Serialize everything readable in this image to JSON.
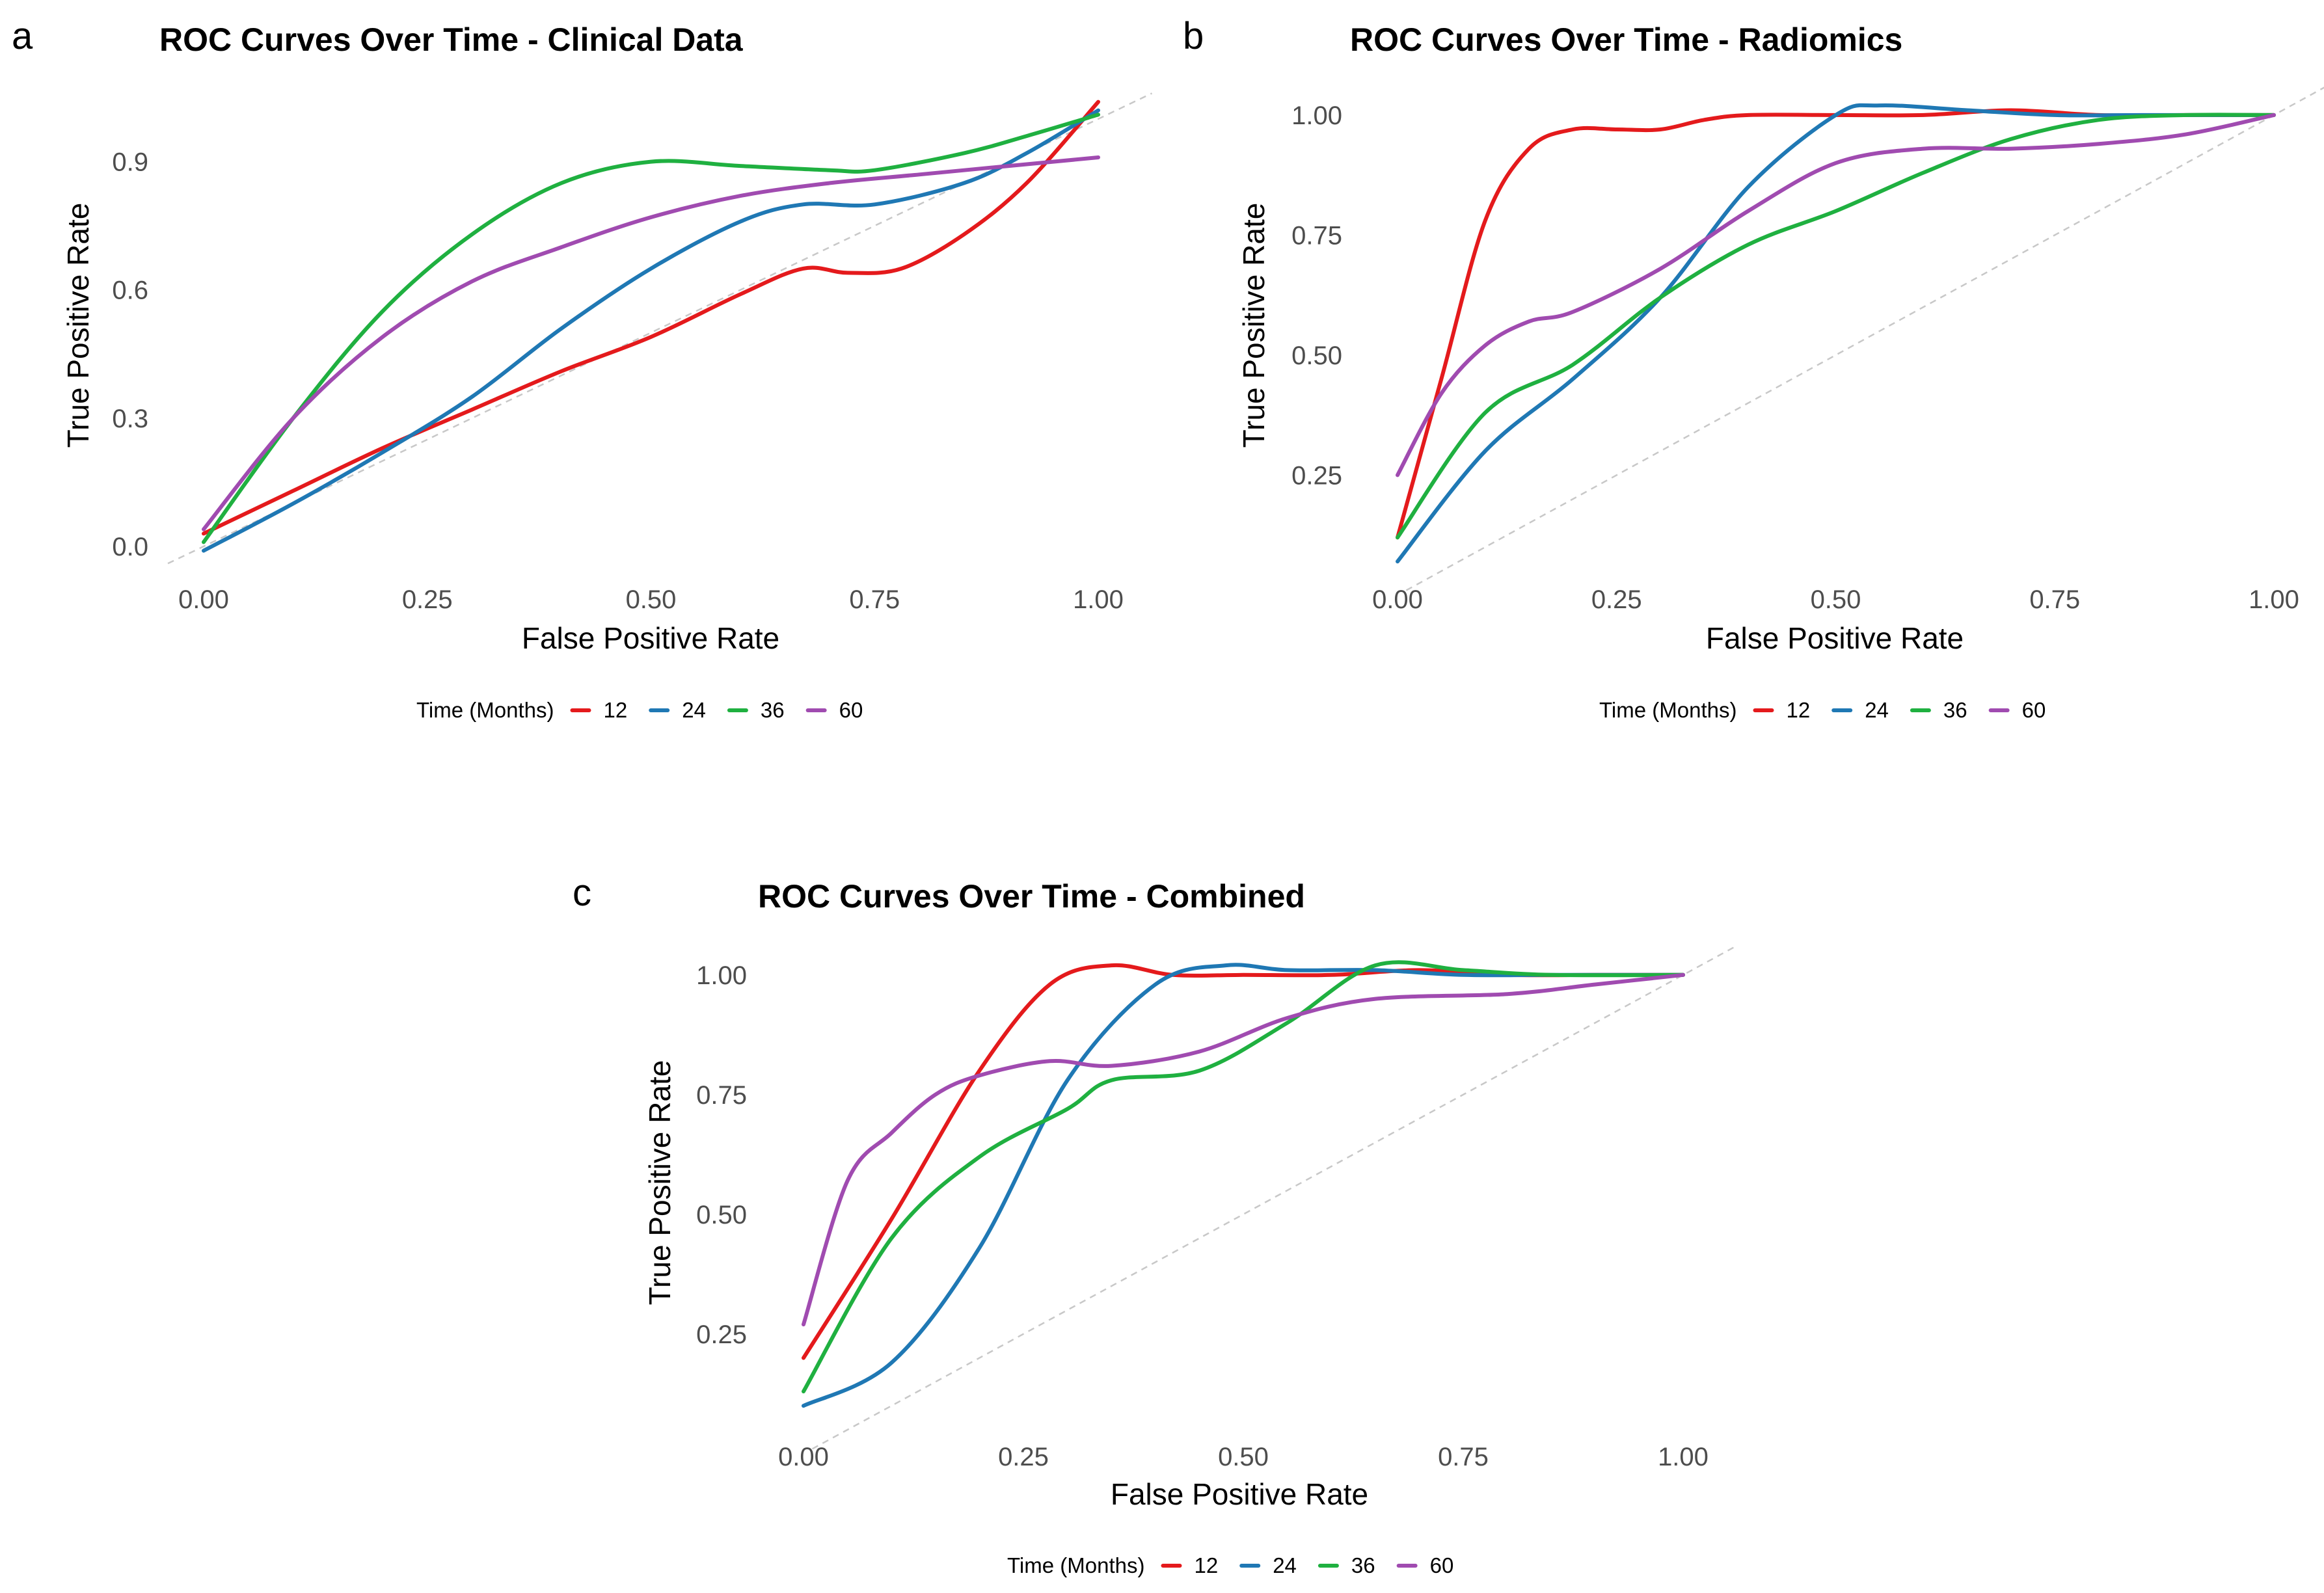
{
  "chart_data": [
    {
      "type": "line",
      "panel": "a",
      "title": "ROC Curves Over Time - Clinical Data",
      "xlabel": "False Positive Rate",
      "ylabel": "True Positive Rate",
      "xlim": [
        0,
        1
      ],
      "ylim": [
        0,
        1.05
      ],
      "xticks": [
        0,
        0.25,
        0.5,
        0.75,
        1
      ],
      "xtick_labels": [
        "0.00",
        "0.25",
        "0.50",
        "0.75",
        "1.00"
      ],
      "yticks": [
        0,
        0.3,
        0.6,
        0.9
      ],
      "ytick_labels": [
        "0.0",
        "0.3",
        "0.6",
        "0.9"
      ],
      "legend_title": "Time (Months)",
      "legend_position": "bottom",
      "series": [
        {
          "name": "12",
          "color": "#e41a1c",
          "x": [
            0,
            0.1,
            0.2,
            0.3,
            0.4,
            0.5,
            0.6,
            0.67,
            0.72,
            0.78,
            0.85,
            0.92,
            1.0
          ],
          "y": [
            0.03,
            0.13,
            0.23,
            0.32,
            0.41,
            0.49,
            0.59,
            0.65,
            0.64,
            0.65,
            0.73,
            0.85,
            1.04
          ]
        },
        {
          "name": "24",
          "color": "#1f78b4",
          "x": [
            0,
            0.1,
            0.2,
            0.3,
            0.4,
            0.5,
            0.6,
            0.67,
            0.75,
            0.85,
            0.92,
            1.0
          ],
          "y": [
            -0.01,
            0.1,
            0.22,
            0.35,
            0.51,
            0.65,
            0.76,
            0.8,
            0.8,
            0.85,
            0.92,
            1.02
          ]
        },
        {
          "name": "36",
          "color": "#1fb040",
          "x": [
            0,
            0.1,
            0.2,
            0.3,
            0.4,
            0.5,
            0.6,
            0.7,
            0.75,
            0.85,
            0.92,
            1.0
          ],
          "y": [
            0.01,
            0.3,
            0.55,
            0.73,
            0.85,
            0.9,
            0.89,
            0.88,
            0.88,
            0.92,
            0.96,
            1.01
          ]
        },
        {
          "name": "60",
          "color": "#a04bb0",
          "x": [
            0,
            0.1,
            0.2,
            0.3,
            0.4,
            0.5,
            0.6,
            0.7,
            0.8,
            0.9,
            1.0
          ],
          "y": [
            0.04,
            0.3,
            0.49,
            0.62,
            0.7,
            0.77,
            0.82,
            0.85,
            0.87,
            0.89,
            0.91
          ]
        }
      ]
    },
    {
      "type": "line",
      "panel": "b",
      "title": "ROC Curves Over Time - Radiomics",
      "xlabel": "False Positive Rate",
      "ylabel": "True Positive Rate",
      "xlim": [
        0,
        1
      ],
      "ylim": [
        0.05,
        1.05
      ],
      "xticks": [
        0,
        0.25,
        0.5,
        0.75,
        1
      ],
      "xtick_labels": [
        "0.00",
        "0.25",
        "0.50",
        "0.75",
        "1.00"
      ],
      "yticks": [
        0.25,
        0.5,
        0.75,
        1.0
      ],
      "ytick_labels": [
        "0.25",
        "0.50",
        "0.75",
        "1.00"
      ],
      "legend_title": "Time (Months)",
      "legend_position": "bottom",
      "series": [
        {
          "name": "12",
          "color": "#e41a1c",
          "x": [
            0,
            0.05,
            0.1,
            0.15,
            0.2,
            0.25,
            0.3,
            0.35,
            0.4,
            0.5,
            0.6,
            0.7,
            0.8,
            0.9,
            1.0
          ],
          "y": [
            0.12,
            0.45,
            0.78,
            0.93,
            0.97,
            0.97,
            0.97,
            0.99,
            1.0,
            1.0,
            1.0,
            1.01,
            1.0,
            1.0,
            1.0
          ]
        },
        {
          "name": "24",
          "color": "#1f78b4",
          "x": [
            0,
            0.1,
            0.2,
            0.3,
            0.4,
            0.5,
            0.55,
            0.65,
            0.75,
            0.85,
            1.0
          ],
          "y": [
            0.07,
            0.3,
            0.45,
            0.62,
            0.85,
            1.0,
            1.02,
            1.01,
            1.0,
            1.0,
            1.0
          ]
        },
        {
          "name": "36",
          "color": "#1fb040",
          "x": [
            0,
            0.1,
            0.2,
            0.3,
            0.4,
            0.5,
            0.6,
            0.7,
            0.8,
            0.9,
            1.0
          ],
          "y": [
            0.12,
            0.38,
            0.48,
            0.62,
            0.73,
            0.8,
            0.88,
            0.95,
            0.99,
            1.0,
            1.0
          ]
        },
        {
          "name": "60",
          "color": "#a04bb0",
          "x": [
            0,
            0.05,
            0.1,
            0.15,
            0.2,
            0.3,
            0.4,
            0.5,
            0.6,
            0.7,
            0.8,
            0.9,
            1.0
          ],
          "y": [
            0.25,
            0.42,
            0.52,
            0.57,
            0.59,
            0.68,
            0.8,
            0.9,
            0.93,
            0.93,
            0.94,
            0.96,
            1.0
          ]
        }
      ]
    },
    {
      "type": "line",
      "panel": "c",
      "title": "ROC Curves Over Time - Combined",
      "xlabel": "False Positive Rate",
      "ylabel": "True Positive Rate",
      "xlim": [
        0,
        1
      ],
      "ylim": [
        0.05,
        1.05
      ],
      "xticks": [
        0,
        0.25,
        0.5,
        0.75,
        1
      ],
      "xtick_labels": [
        "0.00",
        "0.25",
        "0.50",
        "0.75",
        "1.00"
      ],
      "yticks": [
        0.25,
        0.5,
        0.75,
        1.0
      ],
      "ytick_labels": [
        "0.25",
        "0.50",
        "0.75",
        "1.00"
      ],
      "legend_title": "Time (Months)",
      "legend_position": "bottom",
      "series": [
        {
          "name": "12",
          "color": "#e41a1c",
          "x": [
            0,
            0.1,
            0.2,
            0.28,
            0.35,
            0.42,
            0.5,
            0.6,
            0.7,
            0.8,
            0.9,
            1.0
          ],
          "y": [
            0.2,
            0.49,
            0.8,
            0.98,
            1.02,
            1.0,
            1.0,
            1.0,
            1.01,
            1.0,
            1.0,
            1.0
          ]
        },
        {
          "name": "24",
          "color": "#1f78b4",
          "x": [
            0,
            0.1,
            0.2,
            0.3,
            0.4,
            0.48,
            0.55,
            0.65,
            0.75,
            0.85,
            1.0
          ],
          "y": [
            0.1,
            0.19,
            0.43,
            0.78,
            0.98,
            1.02,
            1.01,
            1.01,
            1.0,
            1.0,
            1.0
          ]
        },
        {
          "name": "36",
          "color": "#1fb040",
          "x": [
            0,
            0.1,
            0.2,
            0.3,
            0.35,
            0.45,
            0.55,
            0.65,
            0.75,
            0.85,
            1.0
          ],
          "y": [
            0.13,
            0.45,
            0.62,
            0.72,
            0.78,
            0.8,
            0.9,
            1.02,
            1.01,
            1.0,
            1.0
          ]
        },
        {
          "name": "60",
          "color": "#a04bb0",
          "x": [
            0,
            0.05,
            0.1,
            0.15,
            0.2,
            0.28,
            0.35,
            0.45,
            0.55,
            0.65,
            0.8,
            0.9,
            1.0
          ],
          "y": [
            0.27,
            0.57,
            0.67,
            0.75,
            0.79,
            0.82,
            0.81,
            0.84,
            0.91,
            0.95,
            0.96,
            0.98,
            1.0
          ]
        }
      ]
    }
  ]
}
